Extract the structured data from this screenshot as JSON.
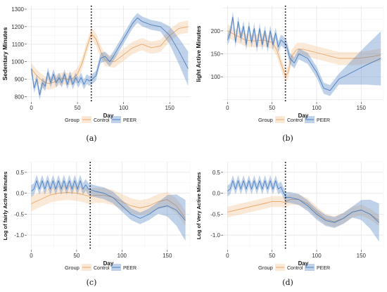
{
  "chart_data": [
    {
      "id": "a",
      "type": "line",
      "caption": "(a)",
      "xlabel": "Day",
      "ylabel": "Sedentary Minutes",
      "xlim": [
        -5,
        172
      ],
      "ylim": [
        770,
        1320
      ],
      "xticks": [
        0,
        50,
        100,
        150
      ],
      "yticks": [
        800,
        900,
        1000,
        1100,
        1200,
        1300
      ],
      "grid": true,
      "vline_x": 65,
      "legend": {
        "title": "Group",
        "placement": "bottom",
        "entries": [
          "Control",
          "PEER"
        ]
      },
      "series": [
        {
          "name": "Control",
          "color": "#f3c08e",
          "band_halfwidth": 35,
          "x": [
            0,
            5,
            10,
            15,
            20,
            25,
            30,
            35,
            40,
            45,
            50,
            55,
            60,
            65,
            70,
            75,
            80,
            90,
            100,
            110,
            120,
            130,
            140,
            150,
            160,
            170
          ],
          "y": [
            960,
            925,
            900,
            880,
            875,
            885,
            900,
            905,
            900,
            905,
            930,
            990,
            1080,
            1160,
            1130,
            1060,
            1010,
            1000,
            1040,
            1080,
            1100,
            1080,
            1090,
            1150,
            1190,
            1200
          ]
        },
        {
          "name": "PEER",
          "color": "#4a7fc1",
          "band_halfwidth": 28,
          "band_grow_after": 140,
          "x": [
            0,
            3,
            6,
            9,
            12,
            15,
            18,
            21,
            24,
            27,
            30,
            33,
            36,
            39,
            42,
            45,
            48,
            51,
            54,
            57,
            60,
            63,
            66,
            70,
            75,
            80,
            85,
            90,
            100,
            110,
            115,
            120,
            130,
            140,
            150,
            160,
            170
          ],
          "y": [
            960,
            850,
            900,
            810,
            880,
            860,
            940,
            880,
            930,
            880,
            910,
            880,
            930,
            870,
            920,
            870,
            910,
            880,
            910,
            870,
            900,
            890,
            900,
            920,
            1020,
            1030,
            1000,
            1040,
            1130,
            1220,
            1250,
            1230,
            1210,
            1200,
            1150,
            1060,
            960
          ]
        }
      ]
    },
    {
      "id": "b",
      "type": "line",
      "caption": "(b)",
      "xlabel": "Day",
      "ylabel": "light Active Minutes",
      "xlim": [
        -5,
        175
      ],
      "ylim": [
        45,
        255
      ],
      "xticks": [
        0,
        50,
        100,
        150
      ],
      "yticks": [
        100,
        150,
        200
      ],
      "grid": true,
      "vline_x": 65,
      "legend": {
        "title": "Group",
        "placement": "bottom",
        "entries": [
          "Control",
          "PEER"
        ]
      },
      "series": [
        {
          "name": "Control",
          "color": "#f3c08e",
          "band_halfwidth": 14,
          "x": [
            0,
            10,
            20,
            30,
            40,
            50,
            55,
            60,
            65,
            68,
            72,
            78,
            85,
            95,
            105,
            115,
            125,
            135,
            145,
            155,
            165,
            172
          ],
          "y": [
            200,
            190,
            180,
            178,
            180,
            175,
            160,
            130,
            100,
            110,
            145,
            160,
            160,
            155,
            150,
            145,
            140,
            140,
            140,
            142,
            145,
            148
          ]
        },
        {
          "name": "PEER",
          "color": "#4a7fc1",
          "band_halfwidth": 12,
          "band_grow_after": 125,
          "x": [
            0,
            3,
            6,
            9,
            12,
            15,
            18,
            21,
            24,
            27,
            30,
            33,
            36,
            39,
            42,
            45,
            48,
            51,
            54,
            57,
            60,
            63,
            66,
            70,
            75,
            80,
            90,
            100,
            108,
            115,
            125,
            140,
            155,
            172
          ],
          "y": [
            180,
            195,
            230,
            175,
            220,
            185,
            210,
            170,
            210,
            175,
            205,
            165,
            205,
            170,
            200,
            165,
            200,
            170,
            195,
            165,
            180,
            175,
            170,
            140,
            130,
            150,
            140,
            110,
            75,
            70,
            95,
            110,
            125,
            140
          ]
        }
      ]
    },
    {
      "id": "c",
      "type": "line",
      "caption": "(c)",
      "xlabel": "Day",
      "ylabel": "Log of fairly Active Minutes",
      "xlim": [
        -5,
        175
      ],
      "ylim": [
        -1.35,
        0.75
      ],
      "xticks": [
        0,
        50,
        100,
        150
      ],
      "yticks": [
        -1.0,
        -0.5,
        0.0,
        0.5
      ],
      "ytick_labels": [
        "-1.0",
        "-0.5",
        "0.0",
        "0.5"
      ],
      "grid": true,
      "vline_x": 65,
      "legend": {
        "title": "Group",
        "placement": "bottom",
        "entries": [
          "Control",
          "PEER"
        ]
      },
      "series": [
        {
          "name": "Control",
          "color": "#f3c08e",
          "band_halfwidth": 0.18,
          "x": [
            0,
            10,
            20,
            30,
            40,
            50,
            60,
            65,
            70,
            80,
            90,
            100,
            110,
            120,
            130,
            140,
            150,
            160,
            170
          ],
          "y": [
            -0.25,
            -0.15,
            -0.05,
            0.0,
            0.02,
            0.0,
            -0.05,
            -0.08,
            -0.05,
            -0.05,
            -0.1,
            -0.2,
            -0.3,
            -0.35,
            -0.3,
            -0.2,
            -0.15,
            -0.3,
            -0.6
          ]
        },
        {
          "name": "PEER",
          "color": "#4a7fc1",
          "band_halfwidth": 0.14,
          "band_grow_after": 140,
          "x": [
            0,
            3,
            6,
            9,
            12,
            15,
            18,
            21,
            24,
            27,
            30,
            33,
            36,
            39,
            42,
            45,
            48,
            51,
            54,
            57,
            60,
            63,
            66,
            70,
            80,
            90,
            100,
            110,
            120,
            130,
            140,
            150,
            160,
            170
          ],
          "y": [
            0.05,
            0.1,
            0.3,
            0.1,
            0.3,
            0.1,
            0.3,
            0.1,
            0.3,
            0.1,
            0.3,
            0.1,
            0.3,
            0.1,
            0.3,
            0.1,
            0.3,
            0.1,
            0.3,
            0.1,
            0.2,
            0.1,
            0.08,
            0.05,
            0.0,
            -0.1,
            -0.3,
            -0.5,
            -0.6,
            -0.5,
            -0.35,
            -0.3,
            -0.4,
            -0.65
          ]
        }
      ]
    },
    {
      "id": "d",
      "type": "line",
      "caption": "(d)",
      "xlabel": "Day",
      "ylabel": "Log of Very Active Minutes",
      "xlim": [
        -5,
        175
      ],
      "ylim": [
        -1.35,
        0.75
      ],
      "xticks": [
        0,
        50,
        100,
        150
      ],
      "yticks": [
        -1.0,
        -0.5,
        0.0,
        0.5
      ],
      "ytick_labels": [
        "-1.0",
        "-0.5",
        "0.0",
        "0.5"
      ],
      "grid": true,
      "vline_x": 65,
      "legend": {
        "title": "Group",
        "placement": "bottom",
        "entries": [
          "Control",
          "PEER"
        ]
      },
      "series": [
        {
          "name": "Control",
          "color": "#f3c08e",
          "band_halfwidth": 0.13,
          "x": [
            0,
            10,
            20,
            30,
            40,
            50,
            60,
            65,
            70,
            80,
            90,
            100,
            110,
            120,
            130,
            140,
            150,
            160,
            170
          ],
          "y": [
            -0.45,
            -0.4,
            -0.35,
            -0.3,
            -0.25,
            -0.2,
            -0.2,
            -0.22,
            -0.15,
            -0.15,
            -0.25,
            -0.45,
            -0.62,
            -0.68,
            -0.6,
            -0.45,
            -0.4,
            -0.5,
            -0.65
          ]
        },
        {
          "name": "PEER",
          "color": "#4a7fc1",
          "band_halfwidth": 0.13,
          "band_grow_after": 140,
          "x": [
            0,
            3,
            6,
            9,
            12,
            15,
            18,
            21,
            24,
            27,
            30,
            33,
            36,
            39,
            42,
            45,
            48,
            51,
            54,
            57,
            60,
            63,
            66,
            70,
            80,
            90,
            100,
            110,
            120,
            130,
            140,
            150,
            160,
            170
          ],
          "y": [
            0.05,
            0.1,
            0.3,
            0.1,
            0.3,
            0.1,
            0.3,
            0.1,
            0.3,
            0.1,
            0.3,
            0.1,
            0.3,
            0.1,
            0.3,
            0.1,
            0.3,
            0.1,
            0.3,
            0.1,
            0.15,
            0.0,
            -0.1,
            -0.1,
            -0.15,
            -0.3,
            -0.5,
            -0.65,
            -0.7,
            -0.6,
            -0.45,
            -0.4,
            -0.5,
            -0.7
          ]
        }
      ]
    }
  ]
}
